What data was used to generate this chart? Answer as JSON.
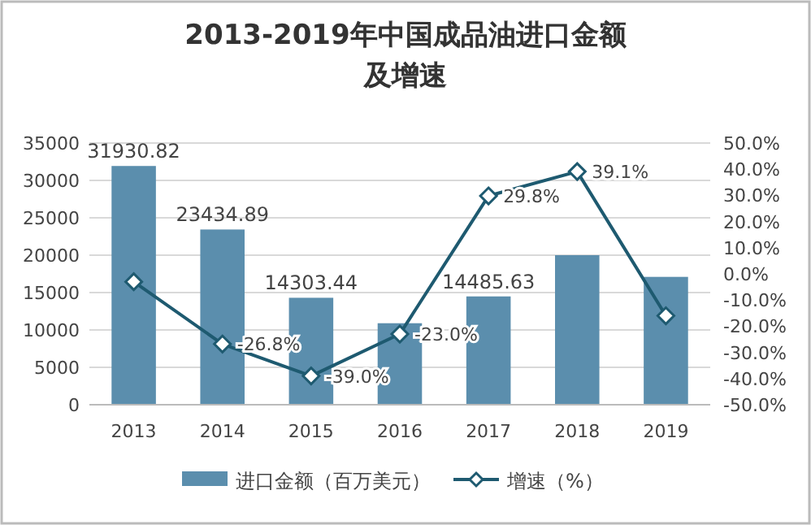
{
  "chart_data": {
    "type": "bar",
    "title": "2013-2019年中国成品油进口金额及增速",
    "categories": [
      "2013",
      "2014",
      "2015",
      "2016",
      "2017",
      "2018",
      "2019"
    ],
    "series": [
      {
        "name": "进口金额（百万美元）",
        "color": "#5b8ead",
        "values": [
          31930.82,
          23434.89,
          14303.44,
          10900,
          14485.63,
          20000,
          17100
        ],
        "value_labels": [
          "31930.82",
          "23434.89",
          "14303.44",
          null,
          "14485.63",
          null,
          null
        ]
      },
      {
        "name": "增速（%）",
        "type": "line",
        "axis": "y2",
        "color": "#1e5a70",
        "marker": "diamond",
        "values": [
          -3,
          -26.8,
          -39.0,
          -23.0,
          29.8,
          39.1,
          -16
        ],
        "value_labels": [
          null,
          "-26.8%",
          "-39.0%",
          "-23.0%",
          "29.8%",
          "39.1%",
          null
        ]
      }
    ],
    "ylim": [
      0,
      35000
    ],
    "yticks": [
      0,
      5000,
      10000,
      15000,
      20000,
      25000,
      30000,
      35000
    ],
    "y2lim": [
      -50,
      50
    ],
    "y2ticks": [
      {
        "value": -50,
        "label": "-50.0%"
      },
      {
        "value": -40,
        "label": "-40.0%"
      },
      {
        "value": -30,
        "label": "-30.0%"
      },
      {
        "value": -20,
        "label": "-20.0%"
      },
      {
        "value": -10,
        "label": "-10.0%"
      },
      {
        "value": 0,
        "label": "0.0%"
      },
      {
        "value": 10,
        "label": "10.0%"
      },
      {
        "value": 20,
        "label": "20.0%"
      },
      {
        "value": 30,
        "label": "30.0%"
      },
      {
        "value": 40,
        "label": "40.0%"
      },
      {
        "value": 50,
        "label": "50.0%"
      }
    ],
    "grid": "y",
    "legend": "bottom"
  }
}
